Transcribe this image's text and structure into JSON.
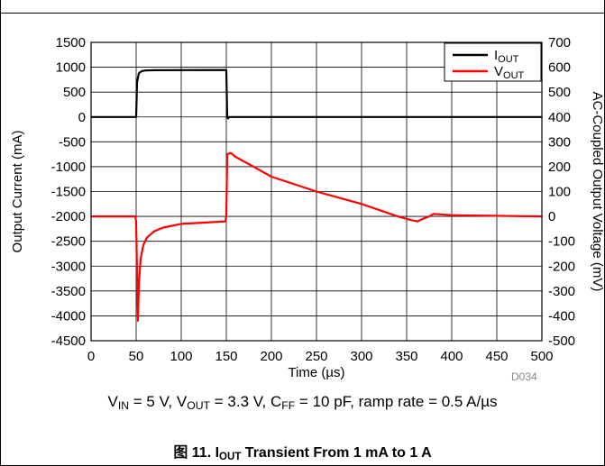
{
  "chart_data": {
    "type": "line",
    "title": "",
    "xlabel": "Time (µs)",
    "ylabel_left": "Output Current (mA)",
    "ylabel_right": "AC-Coupled Output Voltage (mV)",
    "xlim": [
      0,
      500
    ],
    "ylim_left": [
      -4500,
      1500
    ],
    "ylim_right": [
      -500,
      700
    ],
    "x_ticks": [
      0,
      50,
      100,
      150,
      200,
      250,
      300,
      350,
      400,
      450,
      500
    ],
    "y_left_ticks": [
      1500,
      1000,
      500,
      0,
      -500,
      -1000,
      -1500,
      -2000,
      -2500,
      -3000,
      -3500,
      -4000,
      -4500
    ],
    "y_right_ticks": [
      700,
      600,
      500,
      400,
      300,
      200,
      100,
      0,
      -100,
      -200,
      -300,
      -400,
      -500
    ],
    "grid": true,
    "legend_position": "top-right",
    "watermark": "D034",
    "series": [
      {
        "name": "I_OUT",
        "legend_main": "I",
        "legend_sub": "OUT",
        "axis": "left",
        "color": "#000000",
        "points": [
          [
            0,
            0
          ],
          [
            50,
            0
          ],
          [
            51,
            700
          ],
          [
            53,
            880
          ],
          [
            56,
            920
          ],
          [
            60,
            935
          ],
          [
            70,
            940
          ],
          [
            149,
            945
          ],
          [
            150,
            940
          ],
          [
            151,
            0
          ],
          [
            152,
            -30
          ],
          [
            153,
            0
          ],
          [
            500,
            0
          ]
        ]
      },
      {
        "name": "V_OUT",
        "legend_main": "V",
        "legend_sub": "OUT",
        "axis": "right",
        "color": "#ff0000",
        "points": [
          [
            0,
            0
          ],
          [
            49,
            0
          ],
          [
            50,
            -20
          ],
          [
            51,
            -240
          ],
          [
            52,
            -420
          ],
          [
            53,
            -270
          ],
          [
            55,
            -170
          ],
          [
            58,
            -115
          ],
          [
            62,
            -85
          ],
          [
            70,
            -60
          ],
          [
            80,
            -45
          ],
          [
            100,
            -30
          ],
          [
            149,
            -20
          ],
          [
            150,
            0
          ],
          [
            151,
            250
          ],
          [
            155,
            255
          ],
          [
            160,
            240
          ],
          [
            180,
            200
          ],
          [
            200,
            160
          ],
          [
            250,
            100
          ],
          [
            300,
            50
          ],
          [
            340,
            0
          ],
          [
            355,
            -15
          ],
          [
            362,
            -20
          ],
          [
            368,
            -10
          ],
          [
            375,
            0
          ],
          [
            380,
            10
          ],
          [
            400,
            5
          ],
          [
            500,
            0
          ]
        ]
      }
    ]
  },
  "caption": {
    "conditions": [
      {
        "t": "V"
      },
      {
        "t": "IN",
        "sub": true
      },
      {
        "t": " = 5 V, V"
      },
      {
        "t": "OUT",
        "sub": true
      },
      {
        "t": " = 3.3 V, C"
      },
      {
        "t": "FF",
        "sub": true
      },
      {
        "t": " = 10 pF, ramp rate = 0.5 A/µs"
      }
    ],
    "figure_title": [
      {
        "t": "图 11. I"
      },
      {
        "t": "OUT",
        "sub": true
      },
      {
        "t": " Transient From 1 mA to 1 A"
      }
    ]
  }
}
